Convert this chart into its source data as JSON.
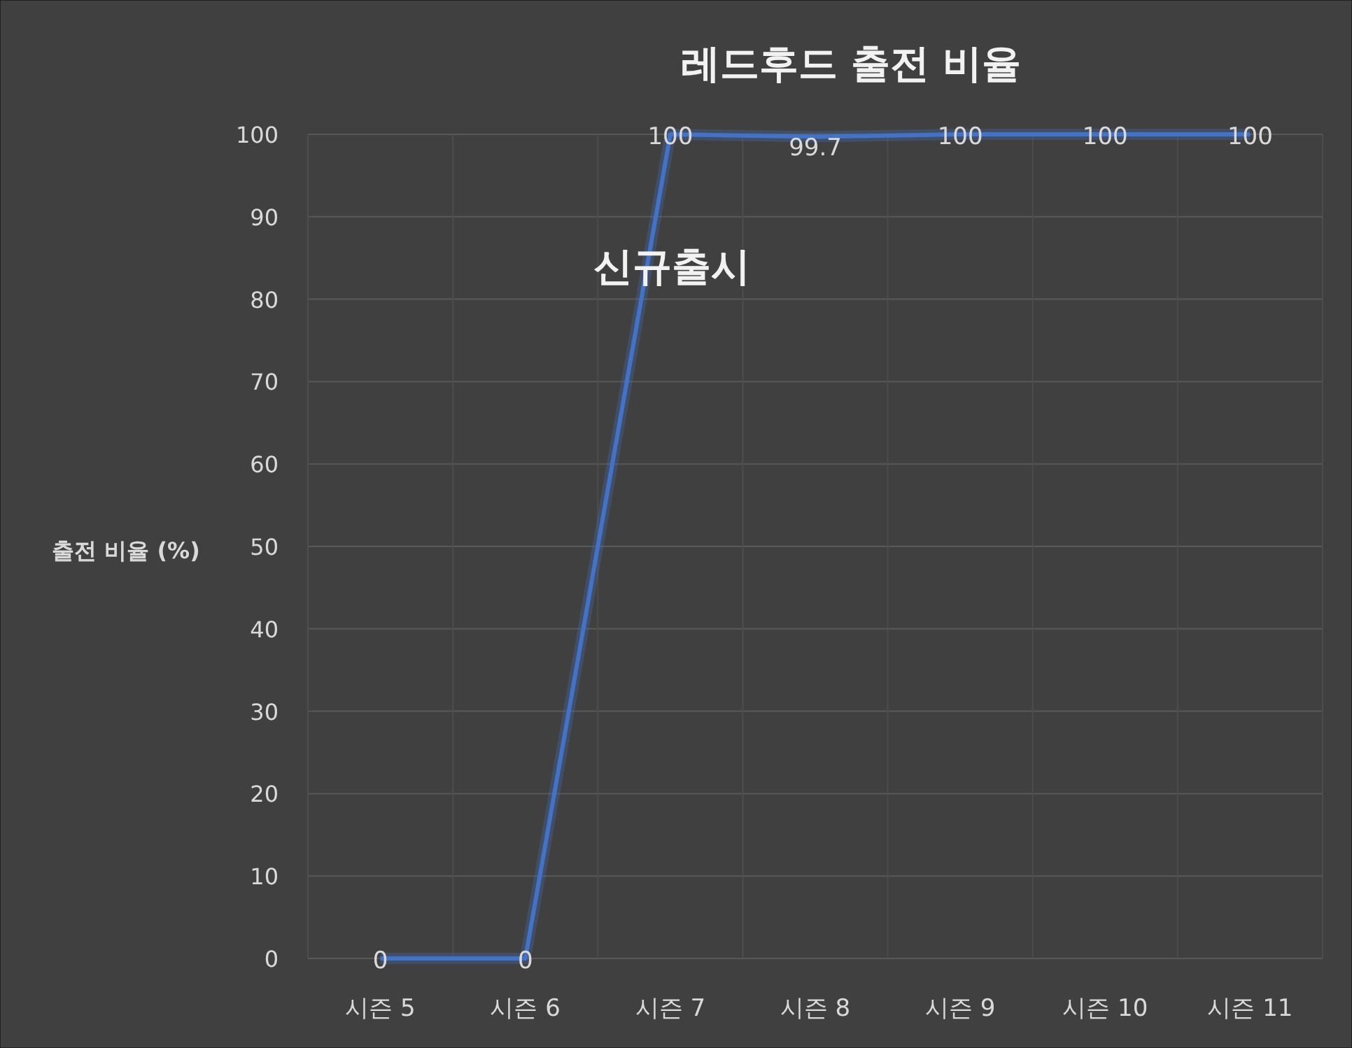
{
  "chart_data": {
    "type": "line",
    "title": "레드후드 출전 비율",
    "ylabel": "출전 비율 (%)",
    "categories": [
      "시즌 5",
      "시즌 6",
      "시즌 7",
      "시즌 8",
      "시즌 9",
      "시즌 10",
      "시즌 11"
    ],
    "series": [
      {
        "color": "#4472c4",
        "values": [
          0,
          0,
          100,
          99.7,
          100,
          100,
          100
        ]
      }
    ],
    "ylim": [
      0,
      100
    ],
    "yticks": [
      0,
      10,
      20,
      30,
      40,
      50,
      60,
      70,
      80,
      90,
      100
    ],
    "grid": true,
    "data_labels": true,
    "marker": "none",
    "line_style": "solid",
    "annotations": [
      "신규출시"
    ]
  }
}
